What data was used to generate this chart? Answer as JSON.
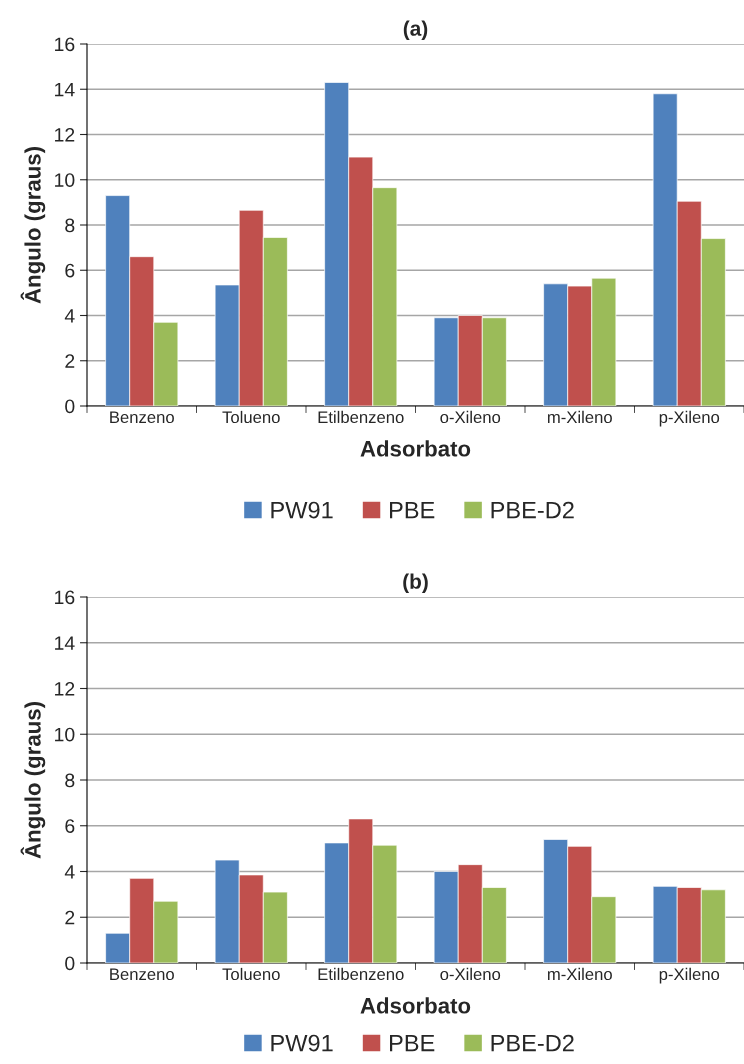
{
  "chart_data": [
    {
      "type": "bar",
      "title": "(a)",
      "xlabel": "Adsorbato",
      "ylabel": "Ângulo (graus)",
      "categories": [
        "Benzeno",
        "Tolueno",
        "Etilbenzeno",
        "o-Xileno",
        "m-Xileno",
        "p-Xileno"
      ],
      "series": [
        {
          "name": "PW91",
          "color": "#4f81bd",
          "values": [
            9.3,
            5.35,
            14.3,
            3.9,
            5.4,
            13.8
          ]
        },
        {
          "name": "PBE",
          "color": "#c0504d",
          "values": [
            6.6,
            8.65,
            11.0,
            4.0,
            5.3,
            9.05
          ]
        },
        {
          "name": "PBE-D2",
          "color": "#9bbb59",
          "values": [
            3.7,
            7.45,
            9.65,
            3.9,
            5.65,
            7.4
          ]
        }
      ],
      "ylim": [
        0,
        16
      ],
      "yticks": [
        0,
        2,
        4,
        6,
        8,
        10,
        12,
        14,
        16
      ],
      "grid": "y",
      "legend": "bottom"
    },
    {
      "type": "bar",
      "title": "(b)",
      "xlabel": "Adsorbato",
      "ylabel": "Ângulo (graus)",
      "categories": [
        "Benzeno",
        "Tolueno",
        "Etilbenzeno",
        "o-Xileno",
        "m-Xileno",
        "p-Xileno"
      ],
      "series": [
        {
          "name": "PW91",
          "color": "#4f81bd",
          "values": [
            1.3,
            4.5,
            5.25,
            4.0,
            5.4,
            3.35
          ]
        },
        {
          "name": "PBE",
          "color": "#c0504d",
          "values": [
            3.7,
            3.85,
            6.3,
            4.3,
            5.1,
            3.3
          ]
        },
        {
          "name": "PBE-D2",
          "color": "#9bbb59",
          "values": [
            2.7,
            3.1,
            5.15,
            3.3,
            2.9,
            3.2
          ]
        }
      ],
      "ylim": [
        0,
        16
      ],
      "yticks": [
        0,
        2,
        4,
        6,
        8,
        10,
        12,
        14,
        16
      ],
      "grid": "y",
      "legend": "bottom"
    }
  ]
}
